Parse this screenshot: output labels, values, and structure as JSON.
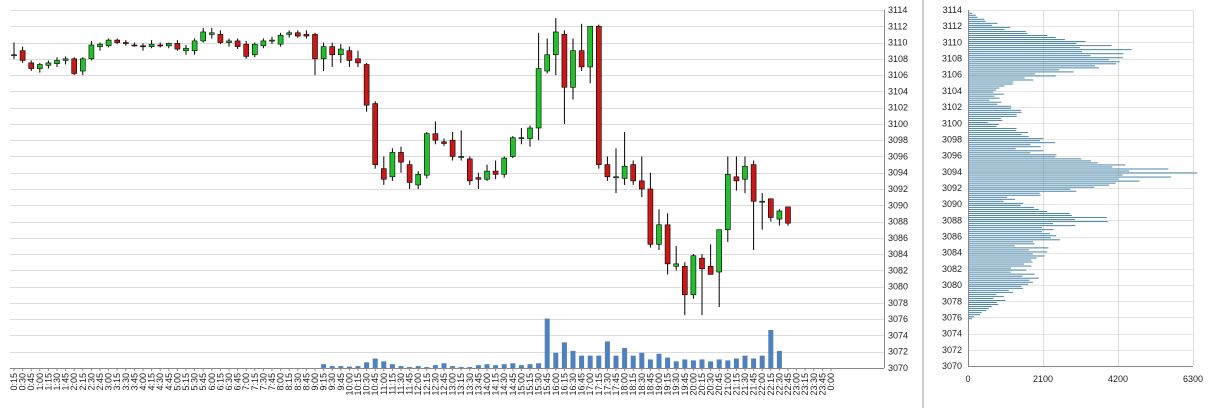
{
  "chart_data": [
    {
      "type": "candlestick",
      "ylim": [
        3070,
        3114
      ],
      "y_ticks": [
        3070,
        3072,
        3074,
        3076,
        3078,
        3080,
        3082,
        3084,
        3086,
        3088,
        3090,
        3092,
        3094,
        3096,
        3098,
        3100,
        3102,
        3104,
        3106,
        3108,
        3110,
        3112,
        3114
      ],
      "time_labels": [
        "0:15",
        "0:30",
        "0:45",
        "1:00",
        "1:15",
        "1:30",
        "1:45",
        "2:00",
        "2:15",
        "2:30",
        "2:45",
        "3:00",
        "3:15",
        "3:30",
        "3:45",
        "4:00",
        "4:15",
        "4:30",
        "4:45",
        "5:00",
        "5:15",
        "5:30",
        "5:45",
        "6:00",
        "6:15",
        "6:30",
        "6:45",
        "7:00",
        "7:15",
        "7:30",
        "7:45",
        "8:00",
        "8:15",
        "8:30",
        "8:45",
        "9:00",
        "9:15",
        "9:30",
        "9:45",
        "10:00",
        "10:15",
        "10:30",
        "10:45",
        "11:00",
        "11:15",
        "11:30",
        "11:45",
        "12:00",
        "12:15",
        "12:30",
        "12:45",
        "13:00",
        "13:15",
        "13:30",
        "13:45",
        "14:00",
        "14:15",
        "14:30",
        "14:45",
        "15:00",
        "15:15",
        "15:30",
        "15:45",
        "16:00",
        "16:15",
        "16:30",
        "16:45",
        "17:00",
        "17:15",
        "17:30",
        "17:45",
        "18:00",
        "18:15",
        "18:30",
        "18:45",
        "19:00",
        "19:15",
        "19:30",
        "19:45",
        "20:00",
        "20:15",
        "20:30",
        "20:45",
        "21:00",
        "21:15",
        "21:30",
        "21:45",
        "22:00",
        "22:15",
        "22:30",
        "22:45",
        "23:00",
        "23:15",
        "23:30",
        "23:45",
        "0:00"
      ],
      "candles": [
        {
          "o": 3108.5,
          "h": 3110,
          "l": 3108,
          "c": 3108.5
        },
        {
          "o": 3109,
          "h": 3109.5,
          "l": 3107.5,
          "c": 3107.8
        },
        {
          "o": 3107.5,
          "h": 3107.8,
          "l": 3106.5,
          "c": 3106.8
        },
        {
          "o": 3106.8,
          "h": 3107.5,
          "l": 3106.3,
          "c": 3107.3
        },
        {
          "o": 3107.2,
          "h": 3107.8,
          "l": 3106.8,
          "c": 3107.5
        },
        {
          "o": 3107.4,
          "h": 3108.2,
          "l": 3107,
          "c": 3107.8
        },
        {
          "o": 3107.8,
          "h": 3108.3,
          "l": 3107.3,
          "c": 3108
        },
        {
          "o": 3108,
          "h": 3108.2,
          "l": 3106,
          "c": 3106.2
        },
        {
          "o": 3106.5,
          "h": 3108.2,
          "l": 3106,
          "c": 3108
        },
        {
          "o": 3108,
          "h": 3110.2,
          "l": 3107.8,
          "c": 3109.7
        },
        {
          "o": 3109.5,
          "h": 3110,
          "l": 3109,
          "c": 3109.8
        },
        {
          "o": 3109.6,
          "h": 3110.5,
          "l": 3109.4,
          "c": 3110.3
        },
        {
          "o": 3110.3,
          "h": 3110.5,
          "l": 3109.8,
          "c": 3110
        },
        {
          "o": 3110,
          "h": 3110.3,
          "l": 3109.6,
          "c": 3109.9
        },
        {
          "o": 3109.7,
          "h": 3110,
          "l": 3109.5,
          "c": 3109.6
        },
        {
          "o": 3109.6,
          "h": 3109.9,
          "l": 3109,
          "c": 3109.5
        },
        {
          "o": 3109.5,
          "h": 3110.3,
          "l": 3109.3,
          "c": 3109.8
        },
        {
          "o": 3109.7,
          "h": 3110,
          "l": 3109.4,
          "c": 3109.6
        },
        {
          "o": 3109.6,
          "h": 3110,
          "l": 3109.3,
          "c": 3109.9
        },
        {
          "o": 3109.9,
          "h": 3110.3,
          "l": 3109,
          "c": 3109.2
        },
        {
          "o": 3109,
          "h": 3109.7,
          "l": 3108.5,
          "c": 3109.3
        },
        {
          "o": 3109,
          "h": 3110.5,
          "l": 3108.5,
          "c": 3110.2
        },
        {
          "o": 3110.2,
          "h": 3111.8,
          "l": 3110,
          "c": 3111.3
        },
        {
          "o": 3111,
          "h": 3111.8,
          "l": 3110.5,
          "c": 3111.2
        },
        {
          "o": 3111,
          "h": 3111.5,
          "l": 3109.8,
          "c": 3110
        },
        {
          "o": 3110,
          "h": 3110.5,
          "l": 3109.5,
          "c": 3110.2
        },
        {
          "o": 3110.2,
          "h": 3110.5,
          "l": 3109.2,
          "c": 3109.5
        },
        {
          "o": 3109.8,
          "h": 3110.2,
          "l": 3108,
          "c": 3108.3
        },
        {
          "o": 3108.5,
          "h": 3110,
          "l": 3108.2,
          "c": 3109.8
        },
        {
          "o": 3109.6,
          "h": 3110.5,
          "l": 3109.3,
          "c": 3110.2
        },
        {
          "o": 3110.2,
          "h": 3110.7,
          "l": 3109.8,
          "c": 3110.3
        },
        {
          "o": 3109.8,
          "h": 3111.2,
          "l": 3109.5,
          "c": 3110.9
        },
        {
          "o": 3111,
          "h": 3111.5,
          "l": 3110.6,
          "c": 3111.2
        },
        {
          "o": 3111.2,
          "h": 3111.5,
          "l": 3110.6,
          "c": 3110.8
        },
        {
          "o": 3111,
          "h": 3111.5,
          "l": 3110.5,
          "c": 3110.8
        },
        {
          "o": 3111,
          "h": 3111.2,
          "l": 3106,
          "c": 3108
        },
        {
          "o": 3108,
          "h": 3110,
          "l": 3106.5,
          "c": 3109.5
        },
        {
          "o": 3109.5,
          "h": 3110,
          "l": 3107,
          "c": 3108.5
        },
        {
          "o": 3108.5,
          "h": 3109.8,
          "l": 3107.5,
          "c": 3109.2
        },
        {
          "o": 3109,
          "h": 3109.5,
          "l": 3107,
          "c": 3107.8
        },
        {
          "o": 3108,
          "h": 3109,
          "l": 3107,
          "c": 3107.5
        },
        {
          "o": 3107.3,
          "h": 3107.5,
          "l": 3101.5,
          "c": 3102.3
        },
        {
          "o": 3102.5,
          "h": 3102.8,
          "l": 3094.5,
          "c": 3095
        },
        {
          "o": 3094.5,
          "h": 3096,
          "l": 3092.5,
          "c": 3093.2
        },
        {
          "o": 3093.5,
          "h": 3097,
          "l": 3093,
          "c": 3096.5
        },
        {
          "o": 3096.5,
          "h": 3097.2,
          "l": 3094,
          "c": 3095.3
        },
        {
          "o": 3095,
          "h": 3095.5,
          "l": 3092,
          "c": 3092.8
        },
        {
          "o": 3092.5,
          "h": 3094.2,
          "l": 3092,
          "c": 3093.8
        },
        {
          "o": 3093.7,
          "h": 3099,
          "l": 3093.3,
          "c": 3098.8
        },
        {
          "o": 3098.8,
          "h": 3100.3,
          "l": 3097.5,
          "c": 3098
        },
        {
          "o": 3097.8,
          "h": 3098.2,
          "l": 3097.3,
          "c": 3097.6
        },
        {
          "o": 3098,
          "h": 3099,
          "l": 3095.5,
          "c": 3096
        },
        {
          "o": 3096,
          "h": 3099.2,
          "l": 3095.5,
          "c": 3096
        },
        {
          "o": 3095.7,
          "h": 3096,
          "l": 3092.5,
          "c": 3093
        },
        {
          "o": 3093.4,
          "h": 3094,
          "l": 3092,
          "c": 3093.2
        },
        {
          "o": 3093.2,
          "h": 3095,
          "l": 3093,
          "c": 3094.2
        },
        {
          "o": 3094.2,
          "h": 3095.5,
          "l": 3093.2,
          "c": 3093.8
        },
        {
          "o": 3093.8,
          "h": 3096,
          "l": 3093.4,
          "c": 3095.8
        },
        {
          "o": 3096,
          "h": 3098.5,
          "l": 3095.8,
          "c": 3098.3
        },
        {
          "o": 3098.3,
          "h": 3099.5,
          "l": 3097.5,
          "c": 3098.3
        },
        {
          "o": 3098.2,
          "h": 3099.8,
          "l": 3097.2,
          "c": 3099.5
        },
        {
          "o": 3099.5,
          "h": 3111.2,
          "l": 3098,
          "c": 3106.8
        },
        {
          "o": 3106.5,
          "h": 3110.5,
          "l": 3106.2,
          "c": 3108.5
        },
        {
          "o": 3108.5,
          "h": 3113,
          "l": 3106,
          "c": 3111.3
        },
        {
          "o": 3111,
          "h": 3111.5,
          "l": 3100,
          "c": 3104.5
        },
        {
          "o": 3104.5,
          "h": 3110.5,
          "l": 3103,
          "c": 3109
        },
        {
          "o": 3109,
          "h": 3112.3,
          "l": 3106.5,
          "c": 3107
        },
        {
          "o": 3107,
          "h": 3112,
          "l": 3105,
          "c": 3112
        },
        {
          "o": 3112,
          "h": 3112.2,
          "l": 3094.5,
          "c": 3095
        },
        {
          "o": 3095,
          "h": 3096,
          "l": 3093,
          "c": 3093.5
        },
        {
          "o": 3093.5,
          "h": 3097,
          "l": 3091.5,
          "c": 3093.5
        },
        {
          "o": 3093.3,
          "h": 3099,
          "l": 3092.5,
          "c": 3094.8
        },
        {
          "o": 3095,
          "h": 3095.5,
          "l": 3092.5,
          "c": 3093
        },
        {
          "o": 3093,
          "h": 3096,
          "l": 3091,
          "c": 3092
        },
        {
          "o": 3092,
          "h": 3094,
          "l": 3084.8,
          "c": 3085.2
        },
        {
          "o": 3085.2,
          "h": 3089.5,
          "l": 3084.5,
          "c": 3087.6
        },
        {
          "o": 3087.6,
          "h": 3089,
          "l": 3081.5,
          "c": 3082.8
        },
        {
          "o": 3082.5,
          "h": 3085,
          "l": 3082,
          "c": 3082.8
        },
        {
          "o": 3082.5,
          "h": 3083,
          "l": 3076.5,
          "c": 3079
        },
        {
          "o": 3079,
          "h": 3084,
          "l": 3078.5,
          "c": 3083.8
        },
        {
          "o": 3083.5,
          "h": 3084,
          "l": 3076.5,
          "c": 3082.2
        },
        {
          "o": 3082.5,
          "h": 3085.2,
          "l": 3081.5,
          "c": 3081.5
        },
        {
          "o": 3081.8,
          "h": 3087,
          "l": 3077.5,
          "c": 3087
        },
        {
          "o": 3087,
          "h": 3096,
          "l": 3085.5,
          "c": 3093.8
        },
        {
          "o": 3093.5,
          "h": 3096,
          "l": 3091.8,
          "c": 3093
        },
        {
          "o": 3093.2,
          "h": 3096,
          "l": 3091.5,
          "c": 3094.8
        },
        {
          "o": 3095,
          "h": 3095.5,
          "l": 3084.5,
          "c": 3090.5
        },
        {
          "o": 3090.5,
          "h": 3091.5,
          "l": 3087,
          "c": 3090.5
        },
        {
          "o": 3090.8,
          "h": 3090.8,
          "l": 3088,
          "c": 3088.5
        },
        {
          "o": 3088.3,
          "h": 3089.5,
          "l": 3087.5,
          "c": 3089.3
        },
        {
          "o": 3089.8,
          "h": 3089.8,
          "l": 3087.5,
          "c": 3087.8
        }
      ],
      "volume_relative": [
        0,
        0,
        0,
        0,
        0,
        0,
        0,
        0,
        0,
        0,
        0,
        0,
        0,
        0,
        0,
        0,
        0,
        0,
        0,
        0,
        0,
        0,
        0,
        0,
        0,
        0,
        0,
        0,
        0,
        0,
        0,
        0,
        0,
        0,
        0,
        0,
        0.4,
        0.2,
        0.2,
        0.15,
        0.2,
        0.6,
        1.0,
        0.7,
        0.4,
        0.2,
        0.1,
        0.2,
        0.1,
        0.3,
        0.5,
        0.2,
        0.1,
        0.1,
        0.3,
        0.4,
        0.3,
        0.4,
        0.5,
        0.3,
        0.4,
        0.5,
        5.2,
        1.6,
        2.7,
        1.8,
        1.3,
        1.3,
        1.3,
        2.8,
        1.3,
        2.1,
        1.3,
        1.6,
        0.9,
        1.5,
        1.1,
        0.7,
        0.9,
        0.8,
        0.9,
        0.7,
        0.9,
        0.8,
        1.0,
        1.3,
        1.0,
        1.3,
        4.0,
        1.8,
        0,
        0,
        0,
        0,
        0,
        0
      ]
    },
    {
      "type": "horizontal_bar",
      "xlim": [
        0,
        6300
      ],
      "x_ticks": [
        0,
        2100,
        4200,
        6300
      ],
      "y_ticks": [
        3070,
        3072,
        3074,
        3076,
        3078,
        3080,
        3082,
        3084,
        3086,
        3088,
        3090,
        3092,
        3094,
        3096,
        3098,
        3100,
        3102,
        3104,
        3106,
        3108,
        3110,
        3112,
        3114
      ],
      "ylim": [
        3070,
        3114
      ],
      "price_step": 0.25,
      "profile_anchors": [
        [
          3075.6,
          0
        ],
        [
          3076,
          150
        ],
        [
          3076.5,
          350
        ],
        [
          3077,
          500
        ],
        [
          3077.5,
          700
        ],
        [
          3078,
          900
        ],
        [
          3078.5,
          800
        ],
        [
          3079,
          1000
        ],
        [
          3079.5,
          1300
        ],
        [
          3080,
          1500
        ],
        [
          3080.5,
          1700
        ],
        [
          3081,
          1700
        ],
        [
          3081.5,
          1500
        ],
        [
          3082,
          1300
        ],
        [
          3082.5,
          1600
        ],
        [
          3083,
          1600
        ],
        [
          3083.5,
          1900
        ],
        [
          3084,
          1850
        ],
        [
          3084.5,
          2000
        ],
        [
          3085,
          1400
        ],
        [
          3085.5,
          2200
        ],
        [
          3086,
          2300
        ],
        [
          3086.5,
          2000
        ],
        [
          3087,
          2100
        ],
        [
          3087.5,
          2700
        ],
        [
          3088,
          3500
        ],
        [
          3088.5,
          3200
        ],
        [
          3089,
          2200
        ],
        [
          3089.5,
          1700
        ],
        [
          3090,
          1400
        ],
        [
          3090.5,
          1000
        ],
        [
          3091,
          1500
        ],
        [
          3091.5,
          2500
        ],
        [
          3092,
          3000
        ],
        [
          3092.5,
          3900
        ],
        [
          3093,
          4300
        ],
        [
          3093.5,
          5000
        ],
        [
          3094,
          5500
        ],
        [
          3094.5,
          4400
        ],
        [
          3095,
          3600
        ],
        [
          3095.5,
          3000
        ],
        [
          3096,
          2200
        ],
        [
          3096.5,
          1800
        ],
        [
          3097,
          1600
        ],
        [
          3097.5,
          2100
        ],
        [
          3098,
          2000
        ],
        [
          3098.5,
          1400
        ],
        [
          3099,
          1500
        ],
        [
          3099.5,
          1000
        ],
        [
          3100,
          600
        ],
        [
          3100.5,
          900
        ],
        [
          3101,
          1300
        ],
        [
          3101.5,
          1400
        ],
        [
          3102,
          1100
        ],
        [
          3102.5,
          800
        ],
        [
          3103,
          700
        ],
        [
          3103.5,
          900
        ],
        [
          3104,
          650
        ],
        [
          3104.5,
          900
        ],
        [
          3105,
          1200
        ],
        [
          3105.5,
          1700
        ],
        [
          3106,
          2200
        ],
        [
          3106.5,
          2600
        ],
        [
          3107,
          3400
        ],
        [
          3107.5,
          3900
        ],
        [
          3108,
          3800
        ],
        [
          3108.5,
          3600
        ],
        [
          3109,
          3900
        ],
        [
          3109.5,
          3500
        ],
        [
          3110,
          3000
        ],
        [
          3110.5,
          2400
        ],
        [
          3111,
          1800
        ],
        [
          3111.5,
          1200
        ],
        [
          3112,
          900
        ],
        [
          3112.5,
          600
        ],
        [
          3113,
          300
        ],
        [
          3113.5,
          150
        ],
        [
          3113.9,
          0
        ]
      ]
    }
  ]
}
